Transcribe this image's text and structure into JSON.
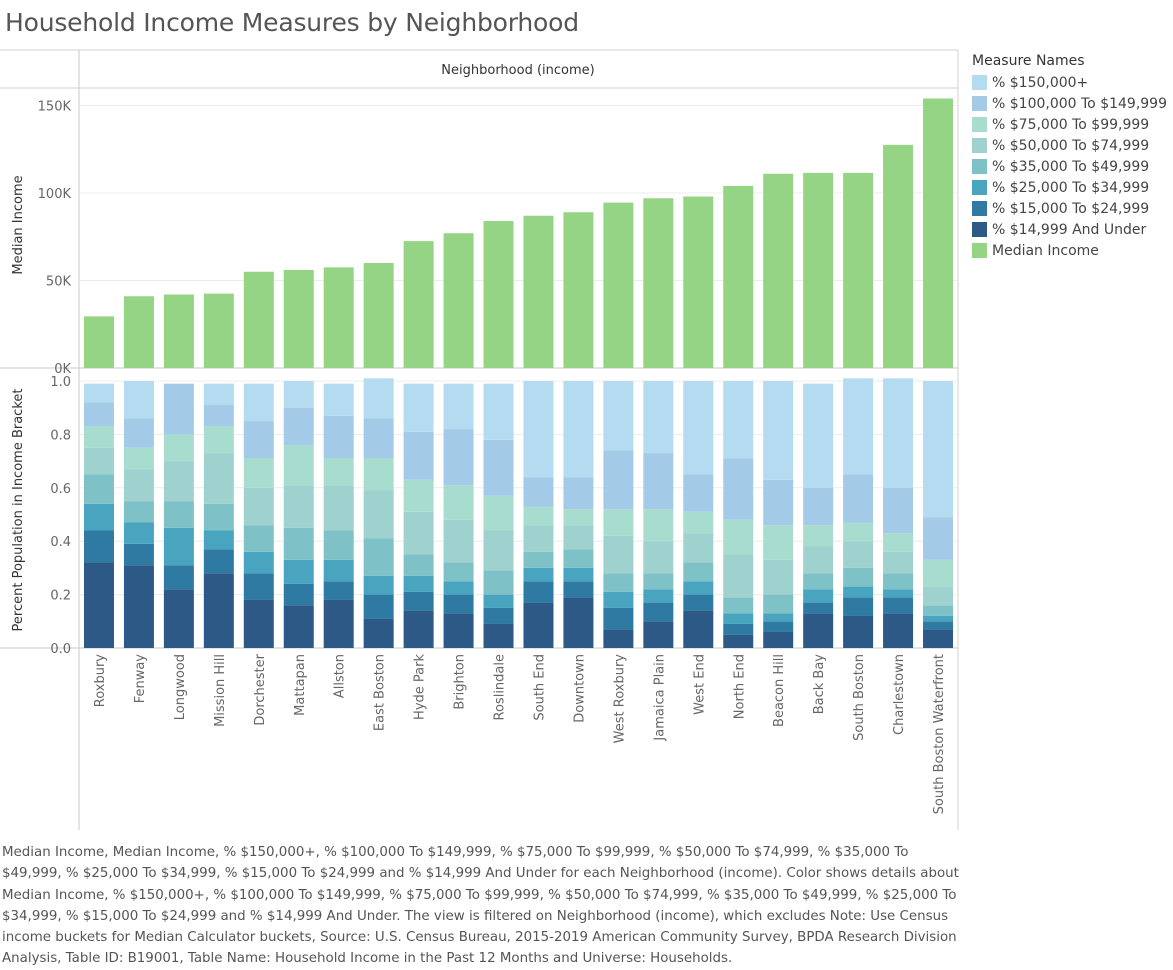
{
  "title": "Household Income Measures by Neighborhood",
  "column_header": "Neighborhood (income)",
  "legend": {
    "title": "Measure Names",
    "items": [
      {
        "label": "% $150,000+",
        "color": "#b5dbf0"
      },
      {
        "label": "% $100,000 To $149,999",
        "color": "#a3cbe8"
      },
      {
        "label": "% $75,000 To $99,999",
        "color": "#a8dccf"
      },
      {
        "label": "% $50,000 To $74,999",
        "color": "#9fd1cf"
      },
      {
        "label": "% $35,000 To $49,999",
        "color": "#7ec1c7"
      },
      {
        "label": "% $25,000 To $34,999",
        "color": "#49a5bf"
      },
      {
        "label": "% $15,000 To $24,999",
        "color": "#2e7aa3"
      },
      {
        "label": "% $14,999 And Under",
        "color": "#2c5985"
      },
      {
        "label": "Median Income",
        "color": "#95d484"
      }
    ]
  },
  "chart_data": [
    {
      "type": "bar",
      "title": "",
      "xlabel": "",
      "ylabel": "Median Income",
      "ylim": [
        0,
        160000
      ],
      "yticks": [
        0,
        50000,
        100000,
        150000
      ],
      "ytick_labels": [
        "0K",
        "50K",
        "100K",
        "150K"
      ],
      "grid": true,
      "color": "#95d484",
      "categories": [
        "Roxbury",
        "Fenway",
        "Longwood",
        "Mission Hill",
        "Dorchester",
        "Mattapan",
        "Allston",
        "East Boston",
        "Hyde Park",
        "Brighton",
        "Roslindale",
        "South End",
        "Downtown",
        "West Roxbury",
        "Jamaica Plain",
        "West End",
        "North End",
        "Beacon Hill",
        "Back Bay",
        "South Boston",
        "Charlestown",
        "South Boston Waterfront"
      ],
      "values": [
        29500,
        41000,
        42000,
        42500,
        55000,
        56000,
        57500,
        60000,
        72500,
        77000,
        84000,
        87000,
        89000,
        94500,
        97000,
        98000,
        104000,
        111000,
        111500,
        111500,
        127500,
        154000
      ]
    },
    {
      "type": "bar",
      "stacked": true,
      "title": "",
      "xlabel": "",
      "ylabel": "Percent Population in Income Bracket",
      "ylim": [
        0,
        1.0
      ],
      "yticks": [
        0.0,
        0.2,
        0.4,
        0.6,
        0.8,
        1.0
      ],
      "ytick_labels": [
        "0.0",
        "0.2",
        "0.4",
        "0.6",
        "0.8",
        "1.0"
      ],
      "grid": true,
      "legend_position": "right",
      "categories": [
        "Roxbury",
        "Fenway",
        "Longwood",
        "Mission Hill",
        "Dorchester",
        "Mattapan",
        "Allston",
        "East Boston",
        "Hyde Park",
        "Brighton",
        "Roslindale",
        "South End",
        "Downtown",
        "West Roxbury",
        "Jamaica Plain",
        "West End",
        "North End",
        "Beacon Hill",
        "Back Bay",
        "South Boston",
        "Charlestown",
        "South Boston Waterfront"
      ],
      "series": [
        {
          "name": "% $14,999 And Under",
          "values": [
            0.32,
            0.31,
            0.22,
            0.28,
            0.18,
            0.16,
            0.18,
            0.11,
            0.14,
            0.13,
            0.09,
            0.17,
            0.19,
            0.07,
            0.1,
            0.14,
            0.05,
            0.06,
            0.13,
            0.12,
            0.13,
            0.07
          ]
        },
        {
          "name": "% $15,000 To $24,999",
          "values": [
            0.12,
            0.08,
            0.09,
            0.09,
            0.1,
            0.08,
            0.07,
            0.09,
            0.07,
            0.07,
            0.06,
            0.08,
            0.06,
            0.08,
            0.07,
            0.06,
            0.04,
            0.04,
            0.04,
            0.07,
            0.06,
            0.03
          ]
        },
        {
          "name": "% $25,000 To $34,999",
          "values": [
            0.1,
            0.08,
            0.14,
            0.07,
            0.08,
            0.09,
            0.08,
            0.07,
            0.06,
            0.05,
            0.05,
            0.05,
            0.05,
            0.06,
            0.05,
            0.05,
            0.04,
            0.03,
            0.05,
            0.04,
            0.03,
            0.02
          ]
        },
        {
          "name": "% $35,000 To $49,999",
          "values": [
            0.11,
            0.08,
            0.1,
            0.1,
            0.1,
            0.12,
            0.11,
            0.14,
            0.08,
            0.07,
            0.09,
            0.06,
            0.07,
            0.07,
            0.06,
            0.07,
            0.06,
            0.07,
            0.06,
            0.07,
            0.06,
            0.04
          ]
        },
        {
          "name": "% $50,000 To $74,999",
          "values": [
            0.1,
            0.12,
            0.15,
            0.19,
            0.14,
            0.16,
            0.17,
            0.18,
            0.16,
            0.16,
            0.15,
            0.1,
            0.09,
            0.14,
            0.12,
            0.11,
            0.16,
            0.13,
            0.1,
            0.1,
            0.08,
            0.07
          ]
        },
        {
          "name": "% $75,000 To $99,999",
          "values": [
            0.08,
            0.08,
            0.1,
            0.1,
            0.11,
            0.15,
            0.1,
            0.12,
            0.12,
            0.13,
            0.13,
            0.07,
            0.06,
            0.1,
            0.12,
            0.08,
            0.13,
            0.13,
            0.08,
            0.07,
            0.07,
            0.1
          ]
        },
        {
          "name": "% $100,000 To $149,999",
          "values": [
            0.09,
            0.11,
            0.19,
            0.08,
            0.14,
            0.14,
            0.16,
            0.15,
            0.18,
            0.21,
            0.21,
            0.11,
            0.12,
            0.22,
            0.21,
            0.14,
            0.23,
            0.17,
            0.14,
            0.18,
            0.17,
            0.16
          ]
        },
        {
          "name": "% $150,000+",
          "values": [
            0.07,
            0.14,
            0.0,
            0.08,
            0.14,
            0.1,
            0.12,
            0.15,
            0.18,
            0.17,
            0.21,
            0.36,
            0.36,
            0.26,
            0.27,
            0.35,
            0.29,
            0.37,
            0.39,
            0.36,
            0.41,
            0.51
          ]
        }
      ]
    }
  ],
  "caption": "Median Income, Median Income, % $150,000+, % $100,000 To $149,999, % $75,000 To $99,999, % $50,000 To $74,999, % $35,000 To $49,999, % $25,000 To $34,999, % $15,000 To $24,999 and % $14,999 And Under for each Neighborhood (income).  Color shows details about Median Income, % $150,000+, % $100,000 To $149,999, % $75,000 To $99,999, % $50,000 To $74,999, % $35,000 To $49,999, % $25,000 To $34,999, % $15,000 To $24,999 and % $14,999 And Under. The view is filtered on Neighborhood (income), which excludes Note: Use Census income buckets for Median Calculator buckets, Source: U.S. Census Bureau, 2015-2019 American Community Survey, BPDA Research Division Analysis, Table ID:  B19001, Table Name: Household Income in the Past 12 Months and Universe: Households."
}
